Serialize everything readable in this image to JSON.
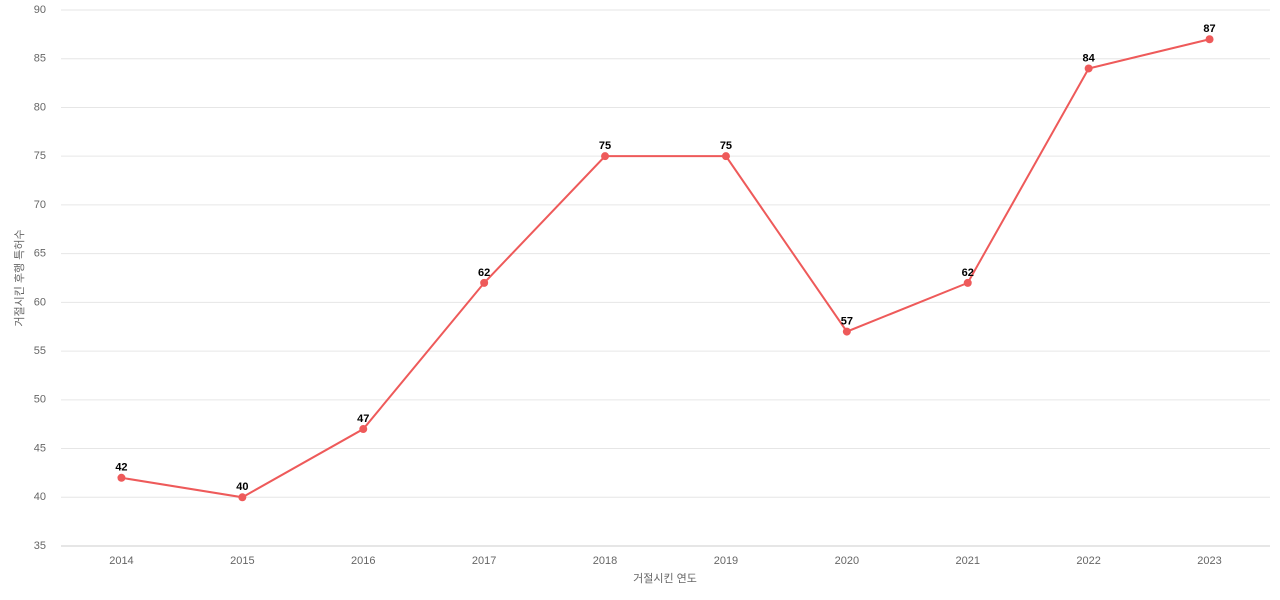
{
  "chart_data": {
    "type": "line",
    "x_label": "거절시킨 연도",
    "y_label": "거절시킨 후행 특허수",
    "categories": [
      "2014",
      "2015",
      "2016",
      "2017",
      "2018",
      "2019",
      "2020",
      "2021",
      "2022",
      "2023"
    ],
    "series": [
      {
        "name": "후행 특허수",
        "color": "#ee5a5a",
        "values": [
          42,
          40,
          47,
          62,
          75,
          75,
          57,
          62,
          84,
          87
        ]
      }
    ],
    "ylim": [
      35,
      90
    ],
    "yticks": [
      35,
      40,
      45,
      50,
      55,
      60,
      65,
      70,
      75,
      80,
      85,
      90
    ],
    "grid": true
  }
}
